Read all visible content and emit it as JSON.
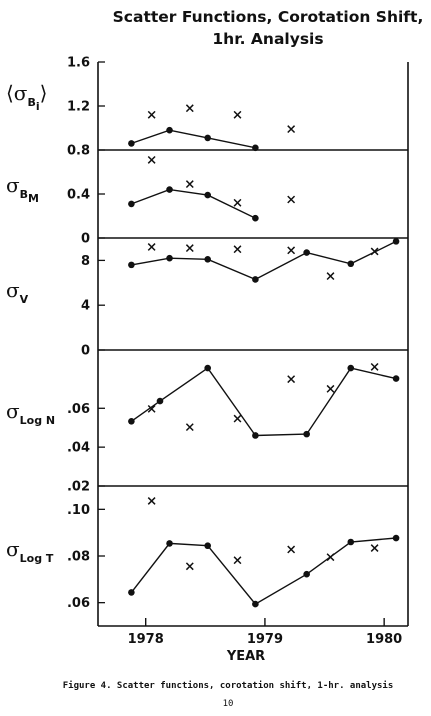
{
  "chart_data": {
    "type": "scatter",
    "title": [
      "Scatter Functions, Corotation Shift,",
      "1hr. Analysis"
    ],
    "xlabel": "YEAR",
    "x_ticks": [
      "1978",
      "1979",
      "1980"
    ],
    "xlim": [
      1977.6,
      1980.2
    ],
    "caption": "Figure 4.  Scatter functions, corotation shift, 1-hr. analysis",
    "page_number": "10",
    "panels": [
      {
        "label": "⟨σ",
        "sub": "B",
        "subsub": "i",
        "label_suffix": "⟩",
        "ylim": [
          0.8,
          1.6
        ],
        "ticks": [
          "1.6",
          "1.2",
          "0.8"
        ],
        "tick_values": [
          1.6,
          1.2,
          0.8
        ],
        "series": [
          {
            "marker": "dot",
            "x": [
              1977.88,
              1978.2,
              1978.52,
              1978.92
            ],
            "y": [
              0.86,
              0.98,
              0.91,
              0.82
            ]
          },
          {
            "marker": "cross",
            "x": [
              1978.05,
              1978.37,
              1978.77,
              1979.22
            ],
            "y": [
              1.12,
              1.18,
              1.12,
              0.99
            ]
          }
        ]
      },
      {
        "label": "σ",
        "sub": "B",
        "subsub": "M",
        "ylim": [
          0.0,
          0.8
        ],
        "ticks": [
          "0.4",
          "0"
        ],
        "tick_values": [
          0.4,
          0.0
        ],
        "series": [
          {
            "marker": "dot",
            "x": [
              1977.88,
              1978.2,
              1978.52,
              1978.92
            ],
            "y": [
              0.31,
              0.44,
              0.39,
              0.18
            ]
          },
          {
            "marker": "cross",
            "x": [
              1978.05,
              1978.37,
              1978.77,
              1979.22
            ],
            "y": [
              0.71,
              0.49,
              0.32,
              0.35
            ]
          }
        ]
      },
      {
        "label": "σ",
        "sub": "V",
        "ylim": [
          0,
          10
        ],
        "ticks": [
          "8",
          "4",
          "0"
        ],
        "tick_values": [
          8,
          4,
          0
        ],
        "series": [
          {
            "marker": "dot",
            "x": [
              1977.88,
              1978.2,
              1978.52,
              1978.92,
              1979.35,
              1979.72,
              1980.1
            ],
            "y": [
              7.6,
              8.2,
              8.1,
              6.3,
              8.7,
              7.7,
              9.7
            ]
          },
          {
            "marker": "cross",
            "x": [
              1978.05,
              1978.37,
              1978.77,
              1979.22,
              1979.55,
              1979.92
            ],
            "y": [
              9.2,
              9.1,
              9.0,
              8.9,
              6.6,
              8.8
            ]
          }
        ]
      },
      {
        "label": "σ",
        "sub": "Log N",
        "ylim": [
          0.02,
          0.09
        ],
        "ticks": [
          ".06",
          ".04",
          ".02"
        ],
        "tick_values": [
          0.06,
          0.04,
          0.02
        ],
        "series": [
          {
            "marker": "dot",
            "x": [
              1977.88,
              1978.12,
              1978.52,
              1978.92,
              1979.35,
              1979.72,
              1980.1
            ],
            "y": [
              0.0533,
              0.0637,
              0.0807,
              0.046,
              0.0467,
              0.0807,
              0.0753
            ]
          },
          {
            "marker": "cross",
            "x": [
              1978.05,
              1978.37,
              1978.77,
              1979.22,
              1979.55,
              1979.92
            ],
            "y": [
              0.0597,
              0.0503,
              0.0547,
              0.075,
              0.07,
              0.0813
            ]
          }
        ]
      },
      {
        "label": "σ",
        "sub": "Log T",
        "ylim": [
          0.05,
          0.11
        ],
        "ticks": [
          ".10",
          ".08",
          ".06"
        ],
        "tick_values": [
          0.1,
          0.08,
          0.06
        ],
        "series": [
          {
            "marker": "dot",
            "x": [
              1977.88,
              1978.2,
              1978.52,
              1978.92,
              1979.35,
              1979.72,
              1980.1
            ],
            "y": [
              0.0644,
              0.0854,
              0.0844,
              0.0594,
              0.0722,
              0.086,
              0.0877
            ]
          },
          {
            "marker": "cross",
            "x": [
              1978.05,
              1978.37,
              1978.77,
              1979.22,
              1979.55,
              1979.92
            ],
            "y": [
              0.1036,
              0.0756,
              0.0782,
              0.0828,
              0.0795,
              0.0834
            ]
          }
        ]
      }
    ]
  }
}
